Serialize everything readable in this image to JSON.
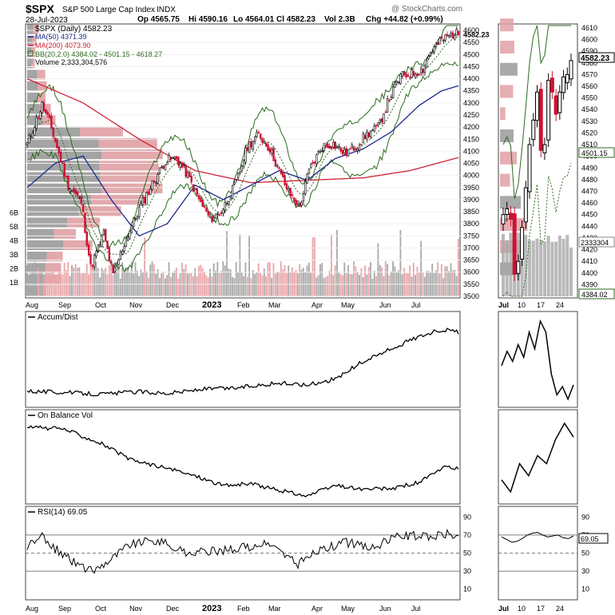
{
  "header": {
    "symbol": "$SPX",
    "name": "S&P 500 Large Cap Index",
    "exchange": "INDX",
    "date": "28-Jul-2023",
    "open": "Op 4565.75",
    "high": "Hi 4590.16",
    "low": "Lo 4564.01",
    "close": "Cl 4582.23",
    "volume": "Vol 2.3B",
    "change": "Chg +44.82 (+0.99%)",
    "watermark": "@ StockCharts.com"
  },
  "legend": {
    "price": "$SPX (Daily) 4582.23",
    "ma50": "MA(50) 4371.39",
    "ma200": "MA(200) 4073.90",
    "bb": "BB(20,2.0) 4384.02 - 4501.15 - 4618.27",
    "volume": "Volume 2,333,304,576"
  },
  "colors": {
    "up": "#000000",
    "down": "#cc1133",
    "ma50": "#1a2a8a",
    "ma200": "#cc2233",
    "bb": "#2d6a1f",
    "vol_up": "#a8a8a8",
    "vol_down": "#e8a4a8",
    "vbp_up": "#9a9a9a",
    "vbp_down": "#e0a0a4",
    "rsi_fill": "#5aa05a"
  },
  "labels": {
    "price_last": "4582.23",
    "inset_last": "4582.23",
    "inset_bb_mid": "4501.15",
    "inset_bb_low": "4384.02",
    "inset_vol": "2333304",
    "adl_title": "Accum/Dist",
    "obv_title": "On Balance Vol",
    "rsi_title": "RSI(14) 69.05",
    "rsi_last": "69.05",
    "year_label": "2023"
  },
  "chart_data": [
    {
      "type": "candlestick",
      "title": "$SPX (Daily)",
      "months": [
        "Aug",
        "Sep",
        "Oct",
        "Nov",
        "Dec",
        "2023",
        "Feb",
        "Mar",
        "Apr",
        "May",
        "Jun",
        "Jul"
      ],
      "ylim": [
        3500,
        4620
      ],
      "yticks": [
        3500,
        3550,
        3600,
        3650,
        3700,
        3750,
        3800,
        3850,
        3900,
        3950,
        4000,
        4050,
        4100,
        4150,
        4200,
        4250,
        4300,
        4350,
        4400,
        4450,
        4500,
        4550,
        4600
      ],
      "volume_ticks": [
        "1B",
        "2B",
        "3B",
        "4B",
        "5B",
        "6B"
      ],
      "close_anchors": [
        [
          0,
          4130
        ],
        [
          8,
          4290
        ],
        [
          12,
          4220
        ],
        [
          22,
          3960
        ],
        [
          29,
          3890
        ],
        [
          34,
          3620
        ],
        [
          41,
          3760
        ],
        [
          46,
          3585
        ],
        [
          53,
          3740
        ],
        [
          60,
          3860
        ],
        [
          66,
          3950
        ],
        [
          74,
          4060
        ],
        [
          80,
          4070
        ],
        [
          86,
          4000
        ],
        [
          92,
          3900
        ],
        [
          98,
          3820
        ],
        [
          104,
          3850
        ],
        [
          112,
          3970
        ],
        [
          118,
          4120
        ],
        [
          124,
          4170
        ],
        [
          130,
          4110
        ],
        [
          136,
          4000
        ],
        [
          140,
          3930
        ],
        [
          146,
          3870
        ],
        [
          151,
          4020
        ],
        [
          158,
          4120
        ],
        [
          164,
          4130
        ],
        [
          170,
          4090
        ],
        [
          176,
          4120
        ],
        [
          182,
          4170
        ],
        [
          188,
          4200
        ],
        [
          194,
          4320
        ],
        [
          200,
          4410
        ],
        [
          206,
          4420
        ],
        [
          212,
          4440
        ],
        [
          216,
          4510
        ],
        [
          222,
          4560
        ],
        [
          229,
          4590
        ],
        [
          231,
          4582
        ]
      ],
      "ma50_anchors": [
        [
          0,
          3950
        ],
        [
          15,
          4050
        ],
        [
          30,
          4080
        ],
        [
          45,
          3900
        ],
        [
          60,
          3750
        ],
        [
          75,
          3800
        ],
        [
          90,
          3960
        ],
        [
          105,
          3900
        ],
        [
          120,
          3960
        ],
        [
          135,
          4020
        ],
        [
          150,
          3980
        ],
        [
          165,
          4070
        ],
        [
          180,
          4110
        ],
        [
          195,
          4180
        ],
        [
          210,
          4290
        ],
        [
          222,
          4350
        ],
        [
          231,
          4371
        ]
      ],
      "ma200_anchors": [
        [
          0,
          4400
        ],
        [
          30,
          4300
        ],
        [
          60,
          4150
        ],
        [
          90,
          4020
        ],
        [
          120,
          3970
        ],
        [
          150,
          3980
        ],
        [
          180,
          3990
        ],
        [
          205,
          4020
        ],
        [
          231,
          4074
        ]
      ],
      "inset": {
        "type": "candlestick",
        "xlabels": [
          "Jul",
          "10",
          "17",
          "24"
        ],
        "ylim": [
          4380,
          4612
        ],
        "yticks": [
          4390,
          4400,
          4410,
          4420,
          4430,
          4440,
          4450,
          4460,
          4470,
          4480,
          4490,
          4500,
          4510,
          4520,
          4530,
          4540,
          4550,
          4560,
          4570,
          4580,
          4590,
          4600,
          4610
        ],
        "closes": [
          4450,
          4455,
          4446,
          4399,
          4410,
          4439,
          4473,
          4510,
          4531,
          4555,
          4505,
          4510,
          4565,
          4555,
          4536,
          4555,
          4568,
          4570,
          4582
        ]
      }
    },
    {
      "type": "line",
      "title": "Accum/Dist",
      "anchors": [
        [
          0,
          0.15
        ],
        [
          20,
          0.13
        ],
        [
          40,
          0.11
        ],
        [
          60,
          0.14
        ],
        [
          75,
          0.12
        ],
        [
          95,
          0.17
        ],
        [
          110,
          0.18
        ],
        [
          125,
          0.22
        ],
        [
          135,
          0.24
        ],
        [
          150,
          0.22
        ],
        [
          165,
          0.29
        ],
        [
          180,
          0.5
        ],
        [
          195,
          0.65
        ],
        [
          210,
          0.8
        ],
        [
          222,
          0.88
        ],
        [
          231,
          0.85
        ]
      ],
      "inset_values": [
        0.45,
        0.62,
        0.5,
        0.7,
        0.55,
        0.85,
        0.65,
        0.98,
        0.85,
        0.35,
        0.1,
        0.2,
        0.05,
        0.22
      ]
    },
    {
      "type": "line",
      "title": "On Balance Vol",
      "anchors": [
        [
          0,
          0.9
        ],
        [
          20,
          0.88
        ],
        [
          40,
          0.7
        ],
        [
          55,
          0.5
        ],
        [
          70,
          0.42
        ],
        [
          90,
          0.3
        ],
        [
          105,
          0.18
        ],
        [
          120,
          0.2
        ],
        [
          135,
          0.12
        ],
        [
          150,
          0.05
        ],
        [
          165,
          0.18
        ],
        [
          180,
          0.13
        ],
        [
          195,
          0.14
        ],
        [
          210,
          0.22
        ],
        [
          225,
          0.42
        ],
        [
          231,
          0.38
        ]
      ],
      "inset_values": [
        0.25,
        0.1,
        0.45,
        0.3,
        0.55,
        0.45,
        0.75,
        0.95,
        0.78
      ]
    },
    {
      "type": "line",
      "title": "RSI(14)",
      "ylim": [
        0,
        100
      ],
      "yticks": [
        10,
        30,
        50,
        70,
        90
      ],
      "reference_lines": [
        30,
        50,
        70
      ],
      "anchors": [
        [
          0,
          58
        ],
        [
          8,
          68
        ],
        [
          15,
          55
        ],
        [
          25,
          40
        ],
        [
          35,
          30
        ],
        [
          45,
          44
        ],
        [
          55,
          60
        ],
        [
          70,
          64
        ],
        [
          85,
          50
        ],
        [
          100,
          52
        ],
        [
          115,
          56
        ],
        [
          130,
          60
        ],
        [
          145,
          38
        ],
        [
          155,
          52
        ],
        [
          170,
          62
        ],
        [
          185,
          56
        ],
        [
          200,
          70
        ],
        [
          215,
          68
        ],
        [
          225,
          72
        ],
        [
          231,
          69.05
        ]
      ],
      "inset_values": [
        68,
        65,
        62,
        63,
        66,
        70,
        72,
        73,
        70,
        68,
        69,
        70,
        67,
        66,
        69
      ]
    }
  ]
}
